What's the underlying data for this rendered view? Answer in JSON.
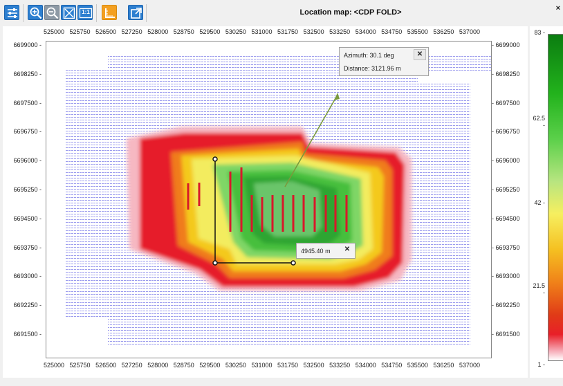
{
  "window": {
    "title": "Location map: <CDP FOLD>",
    "close_glyph": "×"
  },
  "toolbar": {
    "buttons": [
      {
        "name": "settings-button",
        "icon": "sliders-icon"
      },
      {
        "name": "zoom-in-button",
        "icon": "zoom-in-icon"
      },
      {
        "name": "zoom-out-button",
        "icon": "zoom-out-icon"
      },
      {
        "name": "zoom-fit-button",
        "icon": "fit-extent-icon"
      },
      {
        "name": "zoom-1to1-button",
        "icon": "one-to-one-icon",
        "text": "1:1"
      },
      {
        "name": "measure-button",
        "icon": "ruler-icon"
      },
      {
        "name": "export-button",
        "icon": "open-external-icon"
      }
    ]
  },
  "axes": {
    "x_ticks": [
      "525000",
      "525750",
      "526500",
      "527250",
      "528000",
      "528750",
      "529500",
      "530250",
      "531000",
      "531750",
      "532500",
      "533250",
      "534000",
      "534750",
      "535500",
      "536250",
      "537000"
    ],
    "y_ticks": [
      "6699000",
      "6698250",
      "6697500",
      "6696750",
      "6696000",
      "6695250",
      "6694500",
      "6693750",
      "6693000",
      "6692250",
      "6691500"
    ]
  },
  "colorbar": {
    "ticks": [
      "83",
      "62.5",
      "42",
      "21.5",
      "1"
    ],
    "colors": [
      "#0b7d10",
      "#22b21c",
      "#5bd04a",
      "#b7e580",
      "#f6ef60",
      "#f5c021",
      "#f08219",
      "#e03b17",
      "#e81f28",
      "#f6a9b5",
      "#ffffff"
    ]
  },
  "azimuth_popup": {
    "azimuth_label": "Azimuth:",
    "azimuth_value": "30.1",
    "azimuth_unit": "deg",
    "distance_label": "Distance:",
    "distance_value": "3121.96",
    "distance_unit": "m",
    "close_glyph": "✕"
  },
  "measure_popup": {
    "value": "4945.40",
    "unit": "m",
    "close_glyph": "✕"
  },
  "colors": {
    "accent": "#2d7fd0",
    "grid_line": "#7a7ae8",
    "arrow": "#7a9a3c"
  }
}
